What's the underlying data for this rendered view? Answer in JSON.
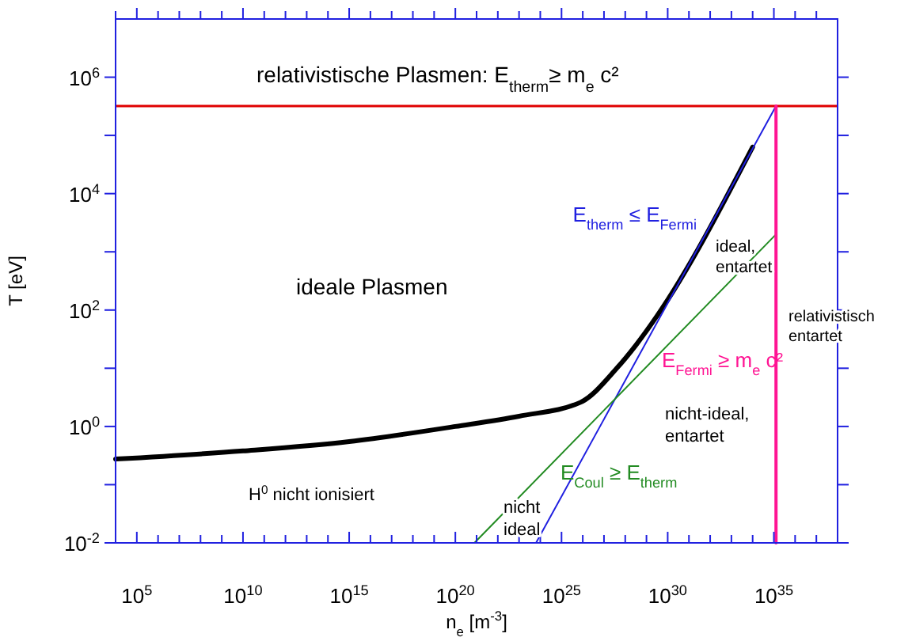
{
  "chart_data": {
    "type": "line",
    "log": "xy",
    "grid": false,
    "marker": "none",
    "line_style": "solid",
    "xlabel": "n$_{e}$ [m$^{-3}$]",
    "ylabel": "T [eV]",
    "xlim": [
      10000.0,
      1e+38
    ],
    "ylim": [
      0.01,
      10000000.0
    ],
    "xticks": [
      {
        "value": 10000.0,
        "label": null
      },
      {
        "value": 100000.0,
        "label": "10$^{5}$"
      },
      {
        "value": 1000000.0,
        "label": null
      },
      {
        "value": 10000000.0,
        "label": null
      },
      {
        "value": 100000000.0,
        "label": null
      },
      {
        "value": 1000000000.0,
        "label": null
      },
      {
        "value": 10000000000.0,
        "label": "10$^{10}$"
      },
      {
        "value": 100000000000.0,
        "label": null
      },
      {
        "value": 1000000000000.0,
        "label": null
      },
      {
        "value": 10000000000000.0,
        "label": null
      },
      {
        "value": 100000000000000.0,
        "label": null
      },
      {
        "value": 1000000000000000.0,
        "label": "10$^{15}$"
      },
      {
        "value": 1e+16,
        "label": null
      },
      {
        "value": 1e+17,
        "label": null
      },
      {
        "value": 1e+18,
        "label": null
      },
      {
        "value": 1e+19,
        "label": null
      },
      {
        "value": 1e+20,
        "label": "10$^{20}$"
      },
      {
        "value": 1e+21,
        "label": null
      },
      {
        "value": 1e+22,
        "label": null
      },
      {
        "value": 1e+23,
        "label": null
      },
      {
        "value": 1e+24,
        "label": null
      },
      {
        "value": 1e+25,
        "label": "10$^{25}$"
      },
      {
        "value": 1e+26,
        "label": null
      },
      {
        "value": 1e+27,
        "label": null
      },
      {
        "value": 1e+28,
        "label": null
      },
      {
        "value": 1e+29,
        "label": null
      },
      {
        "value": 1e+30,
        "label": "10$^{30}$"
      },
      {
        "value": 1e+31,
        "label": null
      },
      {
        "value": 1e+32,
        "label": null
      },
      {
        "value": 1e+33,
        "label": null
      },
      {
        "value": 1e+34,
        "label": null
      },
      {
        "value": 1e+35,
        "label": "10$^{35}$"
      },
      {
        "value": 1e+36,
        "label": null
      },
      {
        "value": 1e+37,
        "label": null
      }
    ],
    "yticks": [
      {
        "value": 0.01,
        "label": "10$^{-2}$"
      },
      {
        "value": 0.1,
        "label": null
      },
      {
        "value": 1,
        "label": "10$^{0}$"
      },
      {
        "value": 10,
        "label": null
      },
      {
        "value": 100,
        "label": "10$^{2}$"
      },
      {
        "value": 1000,
        "label": null
      },
      {
        "value": 10000,
        "label": "10$^{4}$"
      },
      {
        "value": 100000,
        "label": null
      },
      {
        "value": 1000000,
        "label": "10$^{6}$"
      }
    ],
    "series": [
      {
        "color": "#000000",
        "x": [
          10000.0,
          10000000000.0,
          1000000000000000.0,
          1e+20,
          1e+23,
          7.9e+25,
          4e+27,
          3.2e+28,
          3.2e+29,
          1e+34
        ],
        "values": [
          0.275,
          0.38,
          0.55,
          1.0,
          1.5,
          2.6,
          10,
          25,
          80,
          63000
        ]
      },
      {
        "name": "E$_{therm}$ ≤ E$_{Fermi}$",
        "color": "#2020e0",
        "x": [
          6.3e+23,
          1.26e+35
        ],
        "values": [
          0.01,
          320000
        ]
      },
      {
        "name": "E$_{Coul}$ ≥ E$_{therm}$",
        "color": "#228b22",
        "x": [
          7.9e+20,
          1.26e+35
        ],
        "values": [
          0.01,
          2000
        ]
      },
      {
        "name": "E$_{Fermi}$ ≥ m$_{e}$ c²",
        "color": "#ff1493",
        "x": [
          1.26e+35,
          1.26e+35
        ],
        "values": [
          0.01,
          320000
        ]
      }
    ],
    "ref_lines": [
      {
        "axis": "y",
        "value": 320000,
        "color": "#e00000"
      }
    ],
    "annotations": [
      "relativistische  Plasmen:  E$_{therm}$≥ m$_{e}$ c²",
      "ideale  Plasmen",
      "H$^{0}$  nicht  ionisiert",
      "nicht\nideal",
      "ideal,\nentartet",
      "nicht-ideal,\nentartet",
      "relativistisch\nentartet"
    ]
  }
}
